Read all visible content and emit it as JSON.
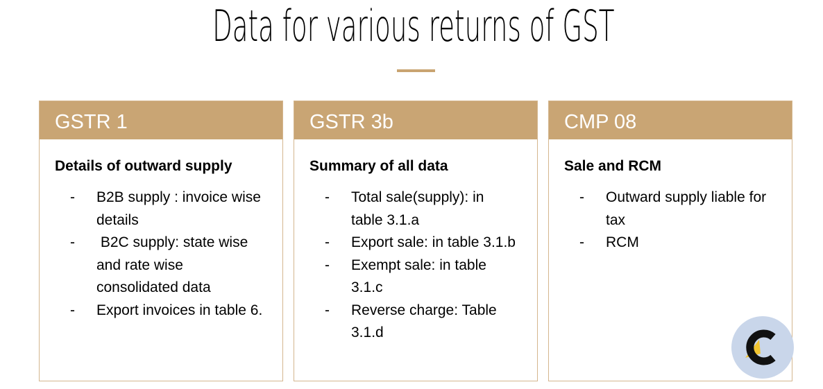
{
  "page": {
    "title": "Data for various returns of GST"
  },
  "cards": [
    {
      "header": "GSTR 1",
      "subtitle": "Details of outward supply",
      "items": [
        "B2B supply : invoice wise details",
        " B2C supply: state wise and rate wise consolidated data",
        "Export invoices in table 6."
      ]
    },
    {
      "header": "GSTR 3b",
      "subtitle": "Summary of all data",
      "items": [
        "Total sale(supply): in table 3.1.a",
        "Export sale: in table 3.1.b",
        "Exempt sale: in table 3.1.c",
        "Reverse charge: Table 3.1.d"
      ]
    },
    {
      "header": "CMP 08",
      "subtitle": "Sale and RCM",
      "items": [
        "Outward supply liable for tax",
        "RCM"
      ]
    }
  ],
  "bullet_marker": "-",
  "colors": {
    "accent": "#c9a574",
    "card_border": "#d4b68e",
    "logo_background": "#c9d6ea",
    "logo_yellow": "#f2c530"
  },
  "icons": {
    "logo": "brand-c-logo-icon"
  }
}
